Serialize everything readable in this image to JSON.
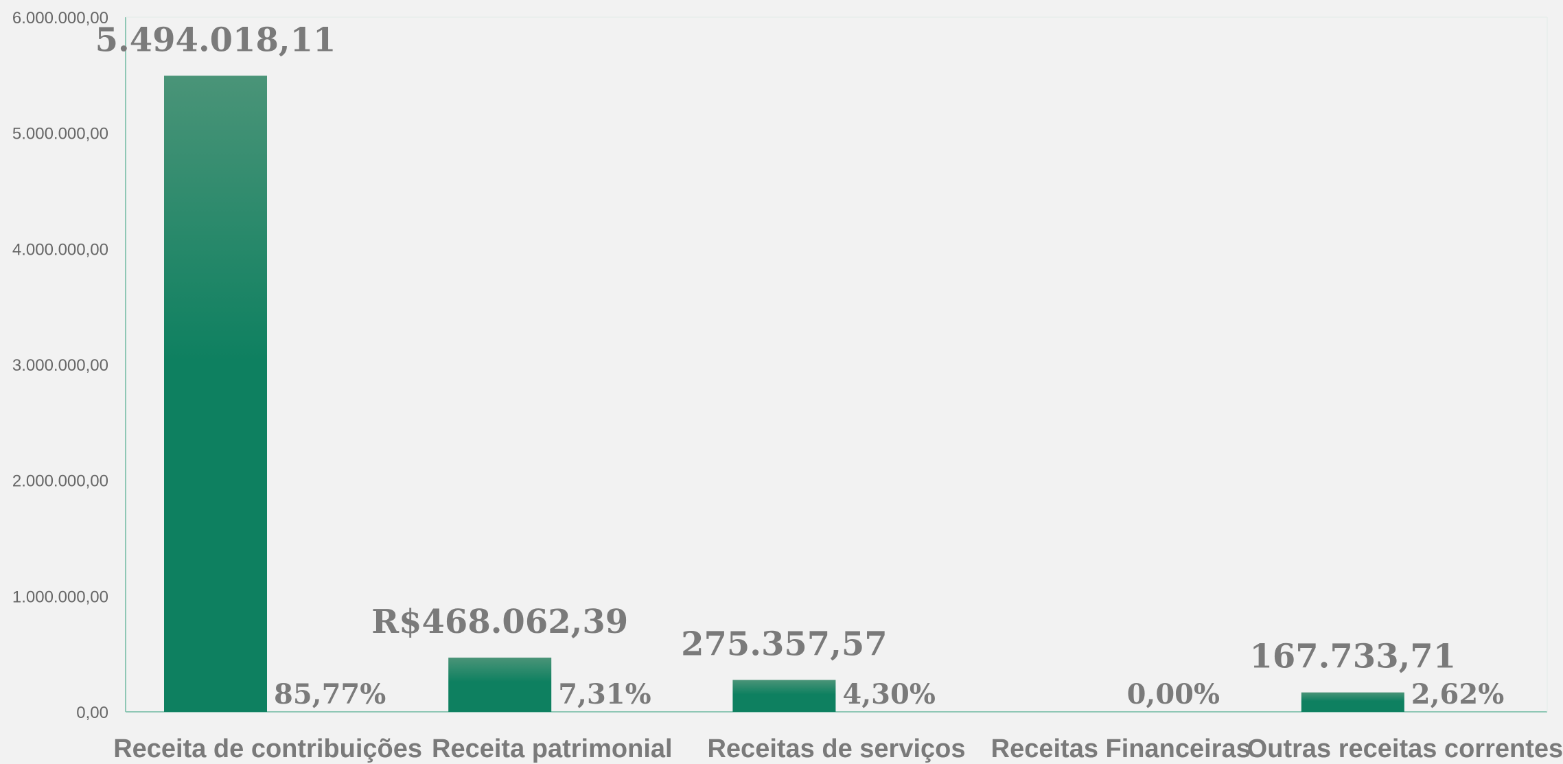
{
  "chart_data": {
    "type": "bar",
    "categories": [
      "Receita de contribuições",
      "Receita patrimonial",
      "Receitas de serviços",
      "Receitas Financeiras",
      "Outras receitas correntes"
    ],
    "values": [
      5494018.11,
      468062.39,
      275357.57,
      0,
      167733.71
    ],
    "value_labels": [
      "5.494.018,11",
      "R$468.062,39",
      "275.357,57",
      "",
      "167.733,71"
    ],
    "percent_labels": [
      "85,77%",
      "7,31%",
      "4,30%",
      "0,00%",
      "2,62%"
    ],
    "ylim": [
      0,
      6000000
    ],
    "yticks": [
      {
        "value": 0,
        "label": "0,00"
      },
      {
        "value": 1000000,
        "label": "1.000.000,00"
      },
      {
        "value": 2000000,
        "label": "2.000.000,00"
      },
      {
        "value": 3000000,
        "label": "3.000.000,00"
      },
      {
        "value": 4000000,
        "label": "4.000.000,00"
      },
      {
        "value": 5000000,
        "label": "5.000.000,00"
      },
      {
        "value": 6000000,
        "label": "6.000.000,00"
      }
    ],
    "grid": false,
    "legend": "none",
    "colors": {
      "bar_top": "#4a9478",
      "bar_bottom": "#0e8060",
      "axis": "#8fc7b5",
      "text": "#7a7a7a"
    }
  }
}
